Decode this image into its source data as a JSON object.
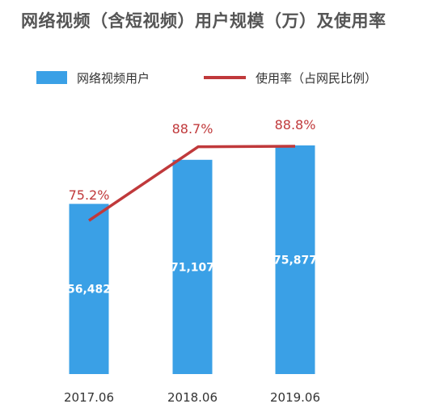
{
  "chart_data": {
    "type": "bar",
    "title": "网络视频（含短视频）用户规模（万）及使用率",
    "categories": [
      "2017.06",
      "2018.06",
      "2019.06"
    ],
    "series": [
      {
        "name": "网络视频用户",
        "type": "bar",
        "values": [
          56482,
          71107,
          75877
        ],
        "labels": [
          "56,482",
          "71,107",
          "75,877"
        ],
        "color": "#3aa0e6"
      },
      {
        "name": "使用率（占网民比例）",
        "type": "line",
        "values": [
          75.2,
          88.7,
          88.8
        ],
        "labels": [
          "75.2%",
          "88.7%",
          "88.8%"
        ],
        "color": "#c0393b"
      }
    ],
    "legend": "top",
    "grid": false,
    "ylim": [
      0,
      80000
    ]
  }
}
